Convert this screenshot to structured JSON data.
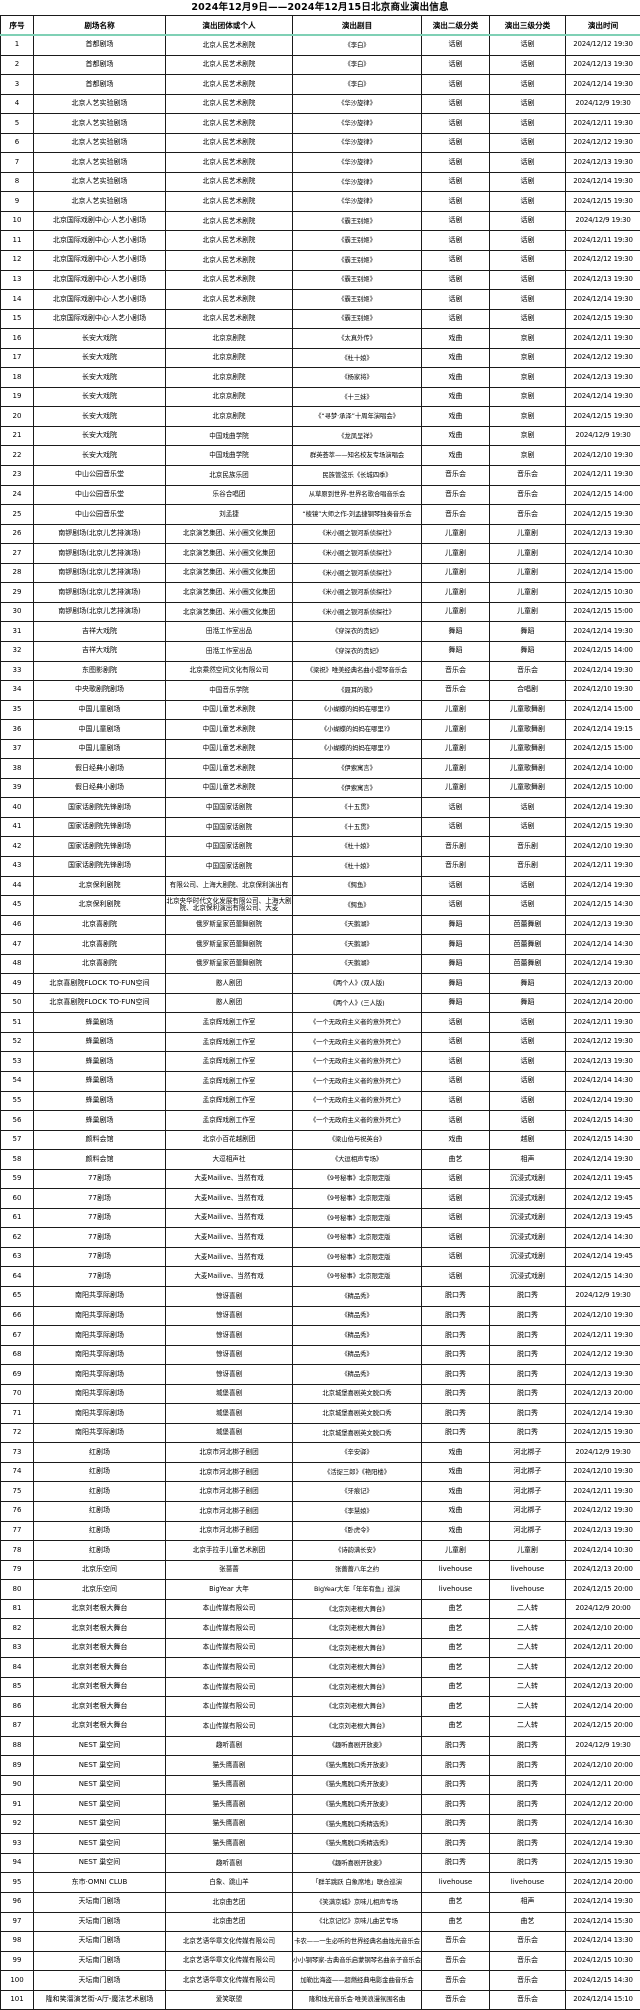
{
  "title": "2024年12月9日——2024年12月15日北京商业演出信息",
  "table": {
    "headers": [
      "序号",
      "剧场名称",
      "演出团体或个人",
      "演出剧目",
      "演出二级分类",
      "演出三级分类",
      "演出时间"
    ],
    "header_underline_color": "#7fd0b5",
    "rows": [
      [
        "1",
        "首都剧场",
        "北京人民艺术剧院",
        "《李白》",
        "话剧",
        "话剧",
        "2024/12/12 19:30"
      ],
      [
        "2",
        "首都剧场",
        "北京人民艺术剧院",
        "《李白》",
        "话剧",
        "话剧",
        "2024/12/13 19:30"
      ],
      [
        "3",
        "首都剧场",
        "北京人民艺术剧院",
        "《李白》",
        "话剧",
        "话剧",
        "2024/12/14 19:30"
      ],
      [
        "4",
        "北京人艺实验剧场",
        "北京人民艺术剧院",
        "《华沙旋律》",
        "话剧",
        "话剧",
        "2024/12/9 19:30"
      ],
      [
        "5",
        "北京人艺实验剧场",
        "北京人民艺术剧院",
        "《华沙旋律》",
        "话剧",
        "话剧",
        "2024/12/11 19:30"
      ],
      [
        "6",
        "北京人艺实验剧场",
        "北京人民艺术剧院",
        "《华沙旋律》",
        "话剧",
        "话剧",
        "2024/12/12 19:30"
      ],
      [
        "7",
        "北京人艺实验剧场",
        "北京人民艺术剧院",
        "《华沙旋律》",
        "话剧",
        "话剧",
        "2024/12/13 19:30"
      ],
      [
        "8",
        "北京人艺实验剧场",
        "北京人民艺术剧院",
        "《华沙旋律》",
        "话剧",
        "话剧",
        "2024/12/14 19:30"
      ],
      [
        "9",
        "北京人艺实验剧场",
        "北京人民艺术剧院",
        "《华沙旋律》",
        "话剧",
        "话剧",
        "2024/12/15 19:30"
      ],
      [
        "10",
        "北京国际戏剧中心·人艺小剧场",
        "北京人民艺术剧院",
        "《霸王别姬》",
        "话剧",
        "话剧",
        "2024/12/9 19:30"
      ],
      [
        "11",
        "北京国际戏剧中心·人艺小剧场",
        "北京人民艺术剧院",
        "《霸王别姬》",
        "话剧",
        "话剧",
        "2024/12/11 19:30"
      ],
      [
        "12",
        "北京国际戏剧中心·人艺小剧场",
        "北京人民艺术剧院",
        "《霸王别姬》",
        "话剧",
        "话剧",
        "2024/12/12 19:30"
      ],
      [
        "13",
        "北京国际戏剧中心·人艺小剧场",
        "北京人民艺术剧院",
        "《霸王别姬》",
        "话剧",
        "话剧",
        "2024/12/13 19:30"
      ],
      [
        "14",
        "北京国际戏剧中心·人艺小剧场",
        "北京人民艺术剧院",
        "《霸王别姬》",
        "话剧",
        "话剧",
        "2024/12/14 19:30"
      ],
      [
        "15",
        "北京国际戏剧中心·人艺小剧场",
        "北京人民艺术剧院",
        "《霸王别姬》",
        "话剧",
        "话剧",
        "2024/12/15 19:30"
      ],
      [
        "16",
        "长安大戏院",
        "北京京剧院",
        "《太真外传》",
        "戏曲",
        "京剧",
        "2024/12/11 19:30"
      ],
      [
        "17",
        "长安大戏院",
        "北京京剧院",
        "《杜十娘》",
        "戏曲",
        "京剧",
        "2024/12/12 19:30"
      ],
      [
        "18",
        "长安大戏院",
        "北京京剧院",
        "《杨家将》",
        "戏曲",
        "京剧",
        "2024/12/13 19:30"
      ],
      [
        "19",
        "长安大戏院",
        "北京京剧院",
        "《十三妹》",
        "戏曲",
        "京剧",
        "2024/12/14 19:30"
      ],
      [
        "20",
        "长安大戏院",
        "北京京剧院",
        "《“寻梦·承泽”十周年演唱会》",
        "戏曲",
        "京剧",
        "2024/12/15 19:30"
      ],
      [
        "21",
        "长安大戏院",
        "中国戏曲学院",
        "《龙凤呈祥》",
        "戏曲",
        "京剧",
        "2024/12/9 19:30"
      ],
      [
        "22",
        "长安大戏院",
        "中国戏曲学院",
        "群英荟萃——知名校友专场演唱会",
        "戏曲",
        "京剧",
        "2024/12/10 19:30"
      ],
      [
        "23",
        "中山公园音乐堂",
        "北京民族乐团",
        "民族管弦乐《长城四季》",
        "音乐会",
        "音乐会",
        "2024/12/11 19:30"
      ],
      [
        "24",
        "中山公园音乐堂",
        "乐谷合唱团",
        "从草原到世界-世界名歌合唱音乐会",
        "音乐会",
        "音乐会",
        "2024/12/15 14:00"
      ],
      [
        "25",
        "中山公园音乐堂",
        "刘孟捷",
        "“棱镜”大师之作-刘孟捷钢琴独奏音乐会",
        "音乐会",
        "音乐会",
        "2024/12/15 19:30"
      ],
      [
        "26",
        "南锣剧场(北京儿艺排演场)",
        "北京演艺集团、米小圈文化集团",
        "《米小圈之银河系侦探社》",
        "儿童剧",
        "儿童剧",
        "2024/12/13 19:30"
      ],
      [
        "27",
        "南锣剧场(北京儿艺排演场)",
        "北京演艺集团、米小圈文化集团",
        "《米小圈之银河系侦探社》",
        "儿童剧",
        "儿童剧",
        "2024/12/14 10:30"
      ],
      [
        "28",
        "南锣剧场(北京儿艺排演场)",
        "北京演艺集团、米小圈文化集团",
        "《米小圈之银河系侦探社》",
        "儿童剧",
        "儿童剧",
        "2024/12/14 15:00"
      ],
      [
        "29",
        "南锣剧场(北京儿艺排演场)",
        "北京演艺集团、米小圈文化集团",
        "《米小圈之银河系侦探社》",
        "儿童剧",
        "儿童剧",
        "2024/12/15 10:30"
      ],
      [
        "30",
        "南锣剧场(北京儿艺排演场)",
        "北京演艺集团、米小圈文化集团",
        "《米小圈之银河系侦探社》",
        "儿童剧",
        "儿童剧",
        "2024/12/15 15:00"
      ],
      [
        "31",
        "吉祥大戏院",
        "田湉工作室出品",
        "《穿深衣的贵妃》",
        "舞蹈",
        "舞蹈",
        "2024/12/14 19:30"
      ],
      [
        "32",
        "吉祥大戏院",
        "田湉工作室出品",
        "《穿深衣的贵妃》",
        "舞蹈",
        "舞蹈",
        "2024/12/15 14:00"
      ],
      [
        "33",
        "东图影剧院",
        "北京乘然空间文化有限公司",
        "《梁祝》唯美经典名曲小提琴音乐会",
        "音乐会",
        "音乐会",
        "2024/12/14 19:30"
      ],
      [
        "34",
        "中央歌剧院剧场",
        "中国音乐学院",
        "《聂耳的歌》",
        "音乐会",
        "合唱剧",
        "2024/12/10 19:30"
      ],
      [
        "35",
        "中国儿童剧场",
        "中国儿童艺术剧院",
        "《小蝴蝶的妈妈在哪里?》",
        "儿童剧",
        "儿童歌舞剧",
        "2024/12/14 15:00"
      ],
      [
        "36",
        "中国儿童剧场",
        "中国儿童艺术剧院",
        "《小蝴蝶的妈妈在哪里?》",
        "儿童剧",
        "儿童歌舞剧",
        "2024/12/14 19:15"
      ],
      [
        "37",
        "中国儿童剧场",
        "中国儿童艺术剧院",
        "《小蝴蝶的妈妈在哪里?》",
        "儿童剧",
        "儿童歌舞剧",
        "2024/12/15 15:00"
      ],
      [
        "38",
        "假日经典小剧场",
        "中国儿童艺术剧院",
        "《伊索寓言》",
        "儿童剧",
        "儿童歌舞剧",
        "2024/12/14 10:00"
      ],
      [
        "39",
        "假日经典小剧场",
        "中国儿童艺术剧院",
        "《伊索寓言》",
        "儿童剧",
        "儿童歌舞剧",
        "2024/12/15 10:00"
      ],
      [
        "40",
        "国家话剧院先锋剧场",
        "中国国家话剧院",
        "《十五贯》",
        "话剧",
        "话剧",
        "2024/12/14 19:30"
      ],
      [
        "41",
        "国家话剧院先锋剧场",
        "中国国家话剧院",
        "《十五贯》",
        "话剧",
        "话剧",
        "2024/12/15 19:30"
      ],
      [
        "42",
        "国家话剧院先锋剧场",
        "中国国家话剧院",
        "《杜十娘》",
        "音乐剧",
        "音乐剧",
        "2024/12/10 19:30"
      ],
      [
        "43",
        "国家话剧院先锋剧场",
        "中国国家话剧院",
        "《杜十娘》",
        "音乐剧",
        "音乐剧",
        "2024/12/11 19:30"
      ],
      [
        "44",
        "北京保利剧院",
        "有限公司、上海大剧院、北京保利演出有",
        "《鳄鱼》",
        "话剧",
        "话剧",
        "2024/12/14 19:30"
      ],
      [
        "45",
        "北京保利剧院",
        "北京央华时代文化发展有限公司、上海大剧院、北京保利演出有限公司、大麦",
        "《鳄鱼》",
        "话剧",
        "话剧",
        "2024/12/15 14:30"
      ],
      [
        "46",
        "北京喜剧院",
        "俄罗斯皇家芭蕾舞剧院",
        "《天鹅湖》",
        "舞蹈",
        "芭蕾舞剧",
        "2024/12/13 19:30"
      ],
      [
        "47",
        "北京喜剧院",
        "俄罗斯皇家芭蕾舞剧院",
        "《天鹅湖》",
        "舞蹈",
        "芭蕾舞剧",
        "2024/12/14 14:30"
      ],
      [
        "48",
        "北京喜剧院",
        "俄罗斯皇家芭蕾舞剧院",
        "《天鹅湖》",
        "舞蹈",
        "芭蕾舞剧",
        "2024/12/14 19:30"
      ],
      [
        "49",
        "北京喜剧院FLOCK TO·FUN空间",
        "憨人剧团",
        "《两个人》(双人版)",
        "舞蹈",
        "舞蹈",
        "2024/12/13 20:00"
      ],
      [
        "50",
        "北京喜剧院FLOCK TO·FUN空间",
        "憨人剧团",
        "《两个人》(三人版)",
        "舞蹈",
        "舞蹈",
        "2024/12/14 20:00"
      ],
      [
        "51",
        "蜂巢剧场",
        "孟京辉戏剧工作室",
        "《一个无政府主义者的意外死亡》",
        "话剧",
        "话剧",
        "2024/12/11 19:30"
      ],
      [
        "52",
        "蜂巢剧场",
        "孟京辉戏剧工作室",
        "《一个无政府主义者的意外死亡》",
        "话剧",
        "话剧",
        "2024/12/12 19:30"
      ],
      [
        "53",
        "蜂巢剧场",
        "孟京辉戏剧工作室",
        "《一个无政府主义者的意外死亡》",
        "话剧",
        "话剧",
        "2024/12/13 19:30"
      ],
      [
        "54",
        "蜂巢剧场",
        "孟京辉戏剧工作室",
        "《一个无政府主义者的意外死亡》",
        "话剧",
        "话剧",
        "2024/12/14 14:30"
      ],
      [
        "55",
        "蜂巢剧场",
        "孟京辉戏剧工作室",
        "《一个无政府主义者的意外死亡》",
        "话剧",
        "话剧",
        "2024/12/14 19:30"
      ],
      [
        "56",
        "蜂巢剧场",
        "孟京辉戏剧工作室",
        "《一个无政府主义者的意外死亡》",
        "话剧",
        "话剧",
        "2024/12/15 14:30"
      ],
      [
        "57",
        "颜料会馆",
        "北京小百花越剧团",
        "《梁山伯与祝英台》",
        "戏曲",
        "越剧",
        "2024/12/15 14:30"
      ],
      [
        "58",
        "颜料会馆",
        "大逗相声社",
        "《大逗相声专场》",
        "曲艺",
        "相声",
        "2024/12/14 19:30"
      ],
      [
        "59",
        "77剧场",
        "大麦Mailive、当然有戏",
        "《9号秘事》北京限定版",
        "话剧",
        "沉浸式戏剧",
        "2024/12/11 19:45"
      ],
      [
        "60",
        "77剧场",
        "大麦Mailive、当然有戏",
        "《9号秘事》北京限定版",
        "话剧",
        "沉浸式戏剧",
        "2024/12/12 19:45"
      ],
      [
        "61",
        "77剧场",
        "大麦Mailive、当然有戏",
        "《9号秘事》北京限定版",
        "话剧",
        "沉浸式戏剧",
        "2024/12/13 19:45"
      ],
      [
        "62",
        "77剧场",
        "大麦Mailive、当然有戏",
        "《9号秘事》北京限定版",
        "话剧",
        "沉浸式戏剧",
        "2024/12/14 14:30"
      ],
      [
        "63",
        "77剧场",
        "大麦Mailive、当然有戏",
        "《9号秘事》北京限定版",
        "话剧",
        "沉浸式戏剧",
        "2024/12/14 19:45"
      ],
      [
        "64",
        "77剧场",
        "大麦Mailive、当然有戏",
        "《9号秘事》北京限定版",
        "话剧",
        "沉浸式戏剧",
        "2024/12/15 14:30"
      ],
      [
        "65",
        "南阳共享际剧场",
        "惊讶喜剧",
        "《精品秀》",
        "脱口秀",
        "脱口秀",
        "2024/12/9 19:30"
      ],
      [
        "66",
        "南阳共享际剧场",
        "惊讶喜剧",
        "《精品秀》",
        "脱口秀",
        "脱口秀",
        "2024/12/10 19:30"
      ],
      [
        "67",
        "南阳共享际剧场",
        "惊讶喜剧",
        "《精品秀》",
        "脱口秀",
        "脱口秀",
        "2024/12/11 19:30"
      ],
      [
        "68",
        "南阳共享际剧场",
        "惊讶喜剧",
        "《精品秀》",
        "脱口秀",
        "脱口秀",
        "2024/12/12 19:30"
      ],
      [
        "69",
        "南阳共享际剧场",
        "惊讶喜剧",
        "《精品秀》",
        "脱口秀",
        "脱口秀",
        "2024/12/13 19:30"
      ],
      [
        "70",
        "南阳共享际剧场",
        "城堡喜剧",
        "北京城堡喜剧英文脱口秀",
        "脱口秀",
        "脱口秀",
        "2024/12/13 20:00"
      ],
      [
        "71",
        "南阳共享际剧场",
        "城堡喜剧",
        "北京城堡喜剧英文脱口秀",
        "脱口秀",
        "脱口秀",
        "2024/12/14 19:30"
      ],
      [
        "72",
        "南阳共享际剧场",
        "城堡喜剧",
        "北京城堡喜剧英文脱口秀",
        "脱口秀",
        "脱口秀",
        "2024/12/15 19:30"
      ],
      [
        "73",
        "红剧场",
        "北京市河北梆子剧团",
        "《辛安驿》",
        "戏曲",
        "河北梆子",
        "2024/12/9 19:30"
      ],
      [
        "74",
        "红剧场",
        "北京市河北梆子剧团",
        "《活捉三郎》《艳阳楼》",
        "戏曲",
        "河北梆子",
        "2024/12/10 19:30"
      ],
      [
        "75",
        "红剧场",
        "北京市河北梆子剧团",
        "《牙痕记》",
        "戏曲",
        "河北梆子",
        "2024/12/11 19:30"
      ],
      [
        "76",
        "红剧场",
        "北京市河北梆子剧团",
        "《李慧娘》",
        "戏曲",
        "河北梆子",
        "2024/12/12 19:30"
      ],
      [
        "77",
        "红剧场",
        "北京市河北梆子剧团",
        "《卧虎令》",
        "戏曲",
        "河北梆子",
        "2024/12/13 19:30"
      ],
      [
        "78",
        "红剧场",
        "北京手拉手儿童艺术剧团",
        "《诗韵满长安》",
        "儿童剧",
        "儿童剧",
        "2024/12/14 10:30"
      ],
      [
        "79",
        "北京乐空间",
        "张蔷蔷",
        "张蔷蔷八年之约",
        "livehouse",
        "livehouse",
        "2024/12/13 20:00"
      ],
      [
        "80",
        "北京乐空间",
        "BigYear 大年",
        "BigYear大年「年年有鱼」巡演",
        "livehouse",
        "livehouse",
        "2024/12/15 20:00"
      ],
      [
        "81",
        "北京刘老根大舞台",
        "本山传媒有限公司",
        "《北京刘老根大舞台》",
        "曲艺",
        "二人转",
        "2024/12/9 20:00"
      ],
      [
        "82",
        "北京刘老根大舞台",
        "本山传媒有限公司",
        "《北京刘老根大舞台》",
        "曲艺",
        "二人转",
        "2024/12/10 20:00"
      ],
      [
        "83",
        "北京刘老根大舞台",
        "本山传媒有限公司",
        "《北京刘老根大舞台》",
        "曲艺",
        "二人转",
        "2024/12/11 20:00"
      ],
      [
        "84",
        "北京刘老根大舞台",
        "本山传媒有限公司",
        "《北京刘老根大舞台》",
        "曲艺",
        "二人转",
        "2024/12/12 20:00"
      ],
      [
        "85",
        "北京刘老根大舞台",
        "本山传媒有限公司",
        "《北京刘老根大舞台》",
        "曲艺",
        "二人转",
        "2024/12/13 20:00"
      ],
      [
        "86",
        "北京刘老根大舞台",
        "本山传媒有限公司",
        "《北京刘老根大舞台》",
        "曲艺",
        "二人转",
        "2024/12/14 20:00"
      ],
      [
        "87",
        "北京刘老根大舞台",
        "本山传媒有限公司",
        "《北京刘老根大舞台》",
        "曲艺",
        "二人转",
        "2024/12/15 20:00"
      ],
      [
        "88",
        "NEST 巢空间",
        "趣听喜剧",
        "《趣听喜剧开放麦》",
        "脱口秀",
        "脱口秀",
        "2024/12/9 19:30"
      ],
      [
        "89",
        "NEST 巢空间",
        "猫头鹰喜剧",
        "《猫头鹰脱口秀开放麦》",
        "脱口秀",
        "脱口秀",
        "2024/12/10 20:00"
      ],
      [
        "90",
        "NEST 巢空间",
        "猫头鹰喜剧",
        "《猫头鹰脱口秀开放麦》",
        "脱口秀",
        "脱口秀",
        "2024/12/11 20:00"
      ],
      [
        "91",
        "NEST 巢空间",
        "猫头鹰喜剧",
        "《猫头鹰脱口秀开放麦》",
        "脱口秀",
        "脱口秀",
        "2024/12/12 20:00"
      ],
      [
        "92",
        "NEST 巢空间",
        "猫头鹰喜剧",
        "《猫头鹰脱口秀精选秀》",
        "脱口秀",
        "脱口秀",
        "2024/12/14 16:30"
      ],
      [
        "93",
        "NEST 巢空间",
        "猫头鹰喜剧",
        "《猫头鹰脱口秀精选秀》",
        "脱口秀",
        "脱口秀",
        "2024/12/14 19:30"
      ],
      [
        "94",
        "NEST 巢空间",
        "趣听喜剧",
        "《趣听喜剧开放麦》",
        "脱口秀",
        "脱口秀",
        "2024/12/15 19:30"
      ],
      [
        "95",
        "东市·OMNI CLUB",
        "白象、跳山羊",
        "「群羊跳跃 白象席地」联合巡演",
        "livehouse",
        "livehouse",
        "2024/12/14 20:00"
      ],
      [
        "96",
        "天坛南门剧场",
        "北京曲艺团",
        "《笑满京城》京味儿相声专场",
        "曲艺",
        "相声",
        "2024/12/14 19:30"
      ],
      [
        "97",
        "天坛南门剧场",
        "北京曲艺团",
        "《北京记忆》京味儿曲艺专场",
        "曲艺",
        "曲艺",
        "2024/12/14 15:30"
      ],
      [
        "98",
        "天坛南门剧场",
        "北京艺语华章文化传媒有限公司",
        "卡农——一生必听的世界经典名曲烛光音乐会",
        "音乐会",
        "音乐会",
        "2024/12/14 13:30"
      ],
      [
        "99",
        "天坛南门剧场",
        "北京艺语华章文化传媒有限公司",
        "小小钢琴家-古典音乐启蒙钢琴名曲亲子音乐会",
        "音乐会",
        "音乐会",
        "2024/12/15 10:30"
      ],
      [
        "100",
        "天坛南门剧场",
        "北京艺语华章文化传媒有限公司",
        "加勒比海盗——超燃经典电影金曲音乐会",
        "音乐会",
        "音乐会",
        "2024/12/15 14:30"
      ],
      [
        "101",
        "隆和笑溜演艺街-A厅-魔法艺术剧场",
        "爱笑联盟",
        "隆和烛光音乐会·唯美浪漫氛围名曲",
        "音乐会",
        "音乐会",
        "2024/12/14 15:10"
      ]
    ]
  }
}
